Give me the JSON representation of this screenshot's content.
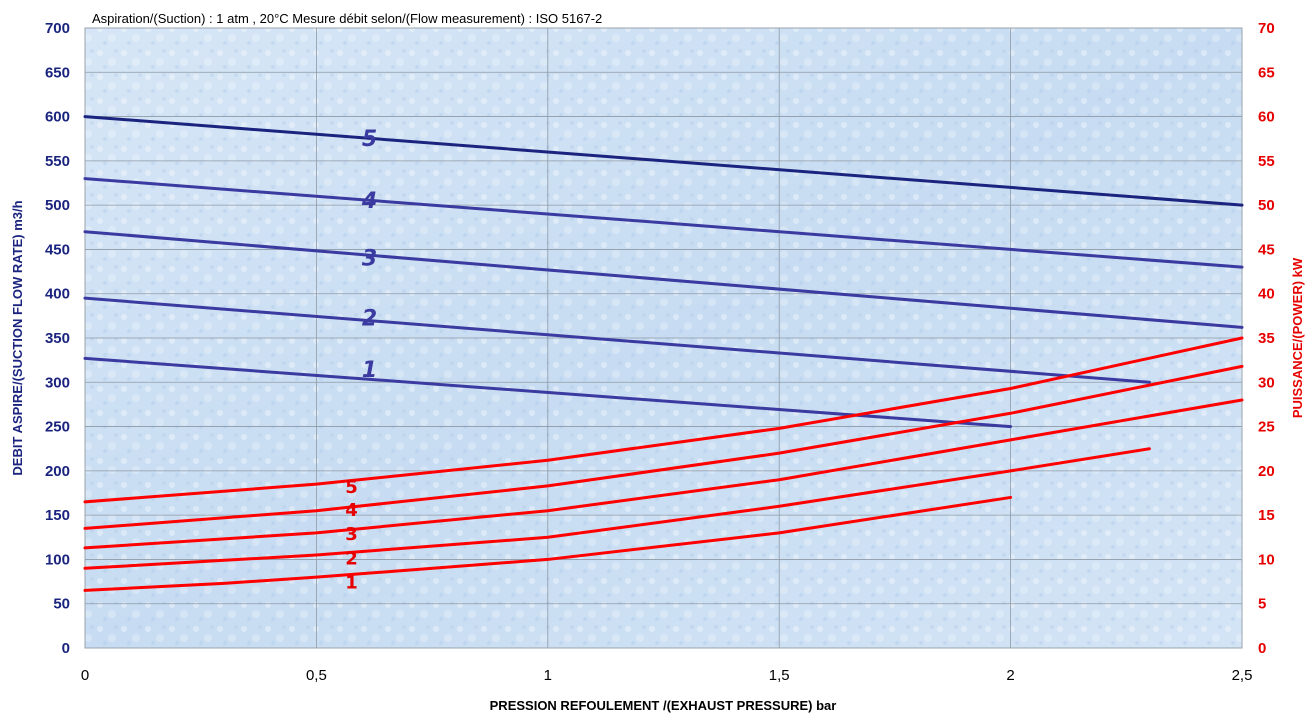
{
  "chart_data": {
    "type": "line",
    "note": "Aspiration/(Suction) : 1 atm , 20°C  Mesure débit selon/(Flow measurement) : ISO 5167-2",
    "xlabel": "PRESSION REFOULEMENT /(EXHAUST PRESSURE) bar",
    "ylabel_left": "DEBIT ASPIRE/(SUCTION FLOW RATE) m3/h",
    "ylabel_right": "PUISSANCE/(POWER) kW",
    "xlim": [
      0,
      2.5
    ],
    "ylim_left": [
      0,
      700
    ],
    "ylim_right": [
      0,
      70
    ],
    "x_ticks": [
      "0",
      "0,5",
      "1",
      "1,5",
      "2",
      "2,5"
    ],
    "x_tick_values": [
      0,
      0.5,
      1,
      1.5,
      2,
      2.5
    ],
    "y_left_ticks": [
      0,
      50,
      100,
      150,
      200,
      250,
      300,
      350,
      400,
      450,
      500,
      550,
      600,
      650,
      700
    ],
    "y_right_ticks": [
      0,
      5,
      10,
      15,
      20,
      25,
      30,
      35,
      40,
      45,
      50,
      55,
      60,
      65,
      70
    ],
    "grid": true,
    "flow_color": "#3a3aa0",
    "flow_color_top": "#1a237e",
    "power_color": "#ff0000",
    "flow_series": [
      {
        "label": "1",
        "points": [
          [
            0,
            327
          ],
          [
            2,
            250
          ]
        ],
        "label_pos": [
          0.55,
          315
        ]
      },
      {
        "label": "2",
        "points": [
          [
            0,
            395
          ],
          [
            2.3,
            300
          ]
        ],
        "label_pos": [
          0.55,
          373
        ]
      },
      {
        "label": "3",
        "points": [
          [
            0,
            470
          ],
          [
            2.5,
            362
          ]
        ],
        "label_pos": [
          0.55,
          441
        ]
      },
      {
        "label": "4",
        "points": [
          [
            0,
            530
          ],
          [
            2.5,
            430
          ]
        ],
        "label_pos": [
          0.55,
          506
        ]
      },
      {
        "label": "5",
        "points": [
          [
            0,
            600
          ],
          [
            2.5,
            500
          ]
        ],
        "label_pos": [
          0.55,
          576
        ]
      }
    ],
    "power_series": [
      {
        "label": "1",
        "points": [
          [
            0,
            6.5
          ],
          [
            0.3,
            7.3
          ],
          [
            0.5,
            8
          ],
          [
            1,
            10
          ],
          [
            1.5,
            13
          ],
          [
            2,
            17
          ]
        ],
        "label_pos": [
          0.55,
          7.5
        ]
      },
      {
        "label": "2",
        "points": [
          [
            0,
            9
          ],
          [
            0.5,
            10.5
          ],
          [
            1,
            12.5
          ],
          [
            1.5,
            16
          ],
          [
            2,
            20
          ],
          [
            2.3,
            22.5
          ]
        ],
        "label_pos": [
          0.55,
          10.2
        ]
      },
      {
        "label": "3",
        "points": [
          [
            0,
            11.3
          ],
          [
            0.5,
            13
          ],
          [
            1,
            15.5
          ],
          [
            1.5,
            19
          ],
          [
            2,
            23.5
          ],
          [
            2.5,
            28
          ]
        ],
        "label_pos": [
          0.55,
          13.0
        ]
      },
      {
        "label": "4",
        "points": [
          [
            0,
            13.5
          ],
          [
            0.5,
            15.5
          ],
          [
            1,
            18.3
          ],
          [
            1.5,
            22
          ],
          [
            2,
            26.5
          ],
          [
            2.5,
            31.8
          ]
        ],
        "label_pos": [
          0.55,
          15.7
        ]
      },
      {
        "label": "5",
        "points": [
          [
            0,
            16.5
          ],
          [
            0.5,
            18.5
          ],
          [
            1,
            21.2
          ],
          [
            1.5,
            24.8
          ],
          [
            2,
            29.3
          ],
          [
            2.5,
            35
          ]
        ],
        "label_pos": [
          0.55,
          18.3
        ]
      }
    ]
  }
}
